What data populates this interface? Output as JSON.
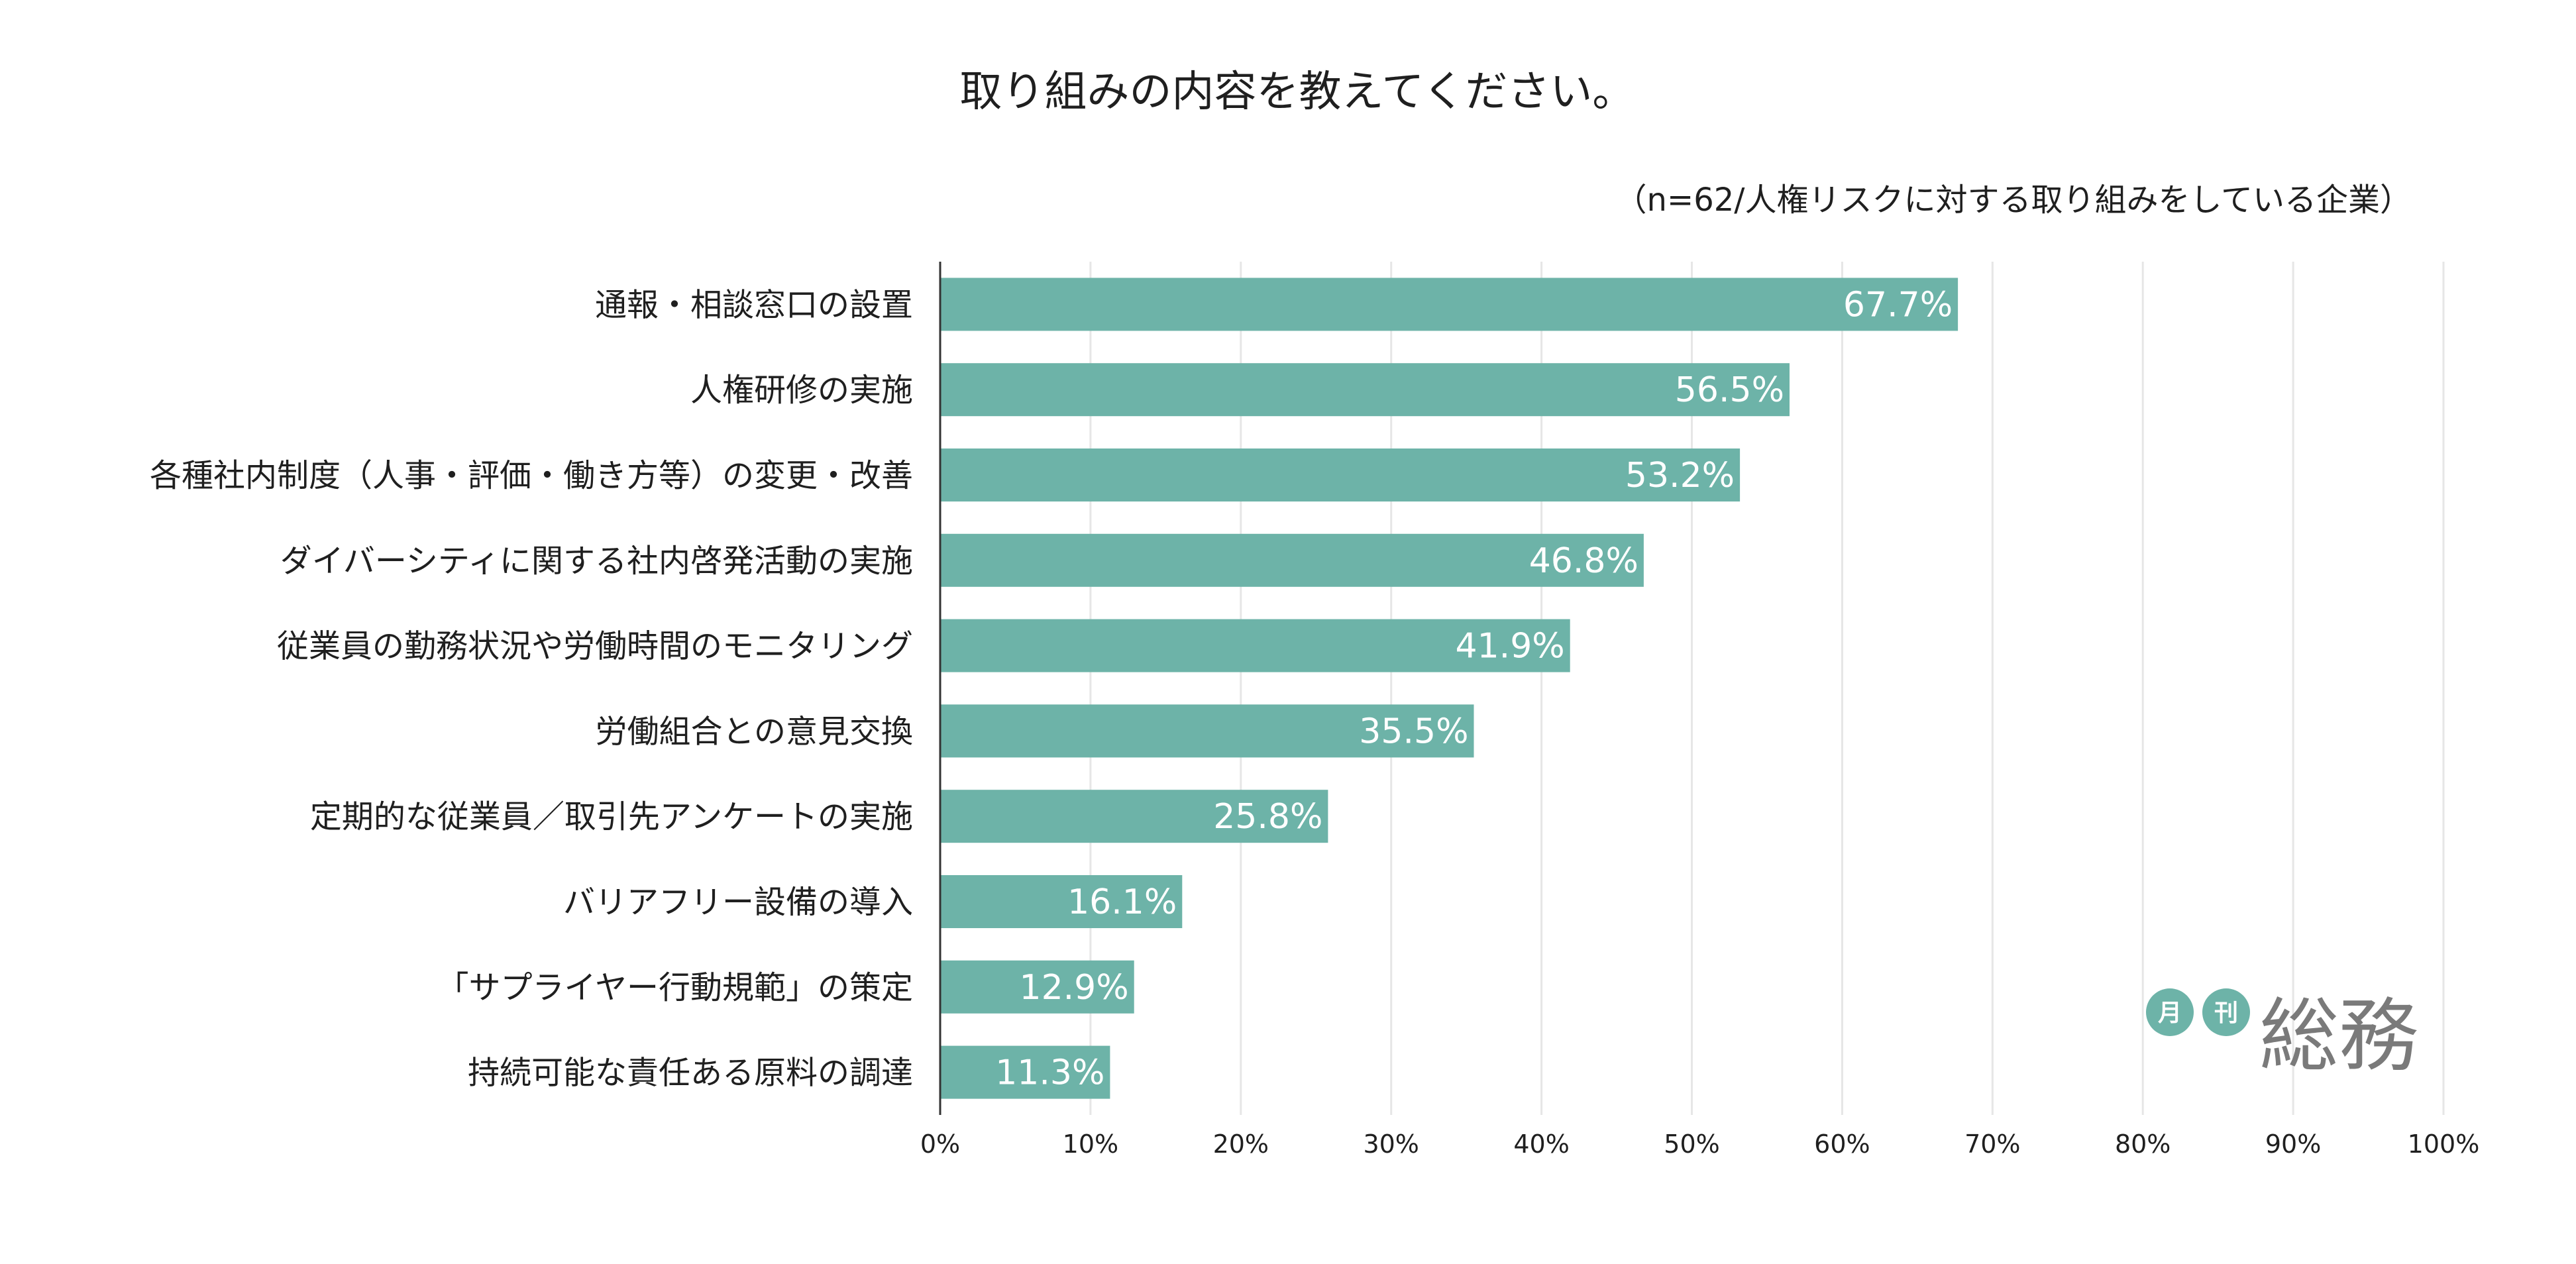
{
  "colors": {
    "bar": "#6db3a8",
    "grid": "#e6e6e6",
    "axis": "#333333",
    "logo_circle": "#6db3a8",
    "logo_text": "#7a7a7a"
  },
  "chart_data": {
    "type": "bar",
    "orientation": "horizontal",
    "title": "取り組みの内容を教えてください。",
    "note": "（n=62/人権リスクに対する取り組みをしている企業）",
    "categories": [
      "通報・相談窓口の設置",
      "人権研修の実施",
      "各種社内制度（人事・評価・働き方等）の変更・改善",
      "ダイバーシティに関する社内啓発活動の実施",
      "従業員の勤務状況や労働時間のモニタリング",
      "労働組合との意見交換",
      "定期的な従業員／取引先アンケートの実施",
      "バリアフリー設備の導入",
      "「サプライヤー行動規範」の策定",
      "持続可能な責任ある原料の調達"
    ],
    "values": [
      67.7,
      56.5,
      53.2,
      46.8,
      41.9,
      35.5,
      25.8,
      16.1,
      12.9,
      11.3
    ],
    "value_labels": [
      "67.7%",
      "56.5%",
      "53.2%",
      "46.8%",
      "41.9%",
      "35.5%",
      "25.8%",
      "16.1%",
      "12.9%",
      "11.3%"
    ],
    "xlim": [
      0,
      100
    ],
    "xticks": [
      "0%",
      "10%",
      "20%",
      "30%",
      "40%",
      "50%",
      "60%",
      "70%",
      "80%",
      "90%",
      "100%"
    ],
    "grid": true,
    "legend": "none"
  },
  "logo": {
    "circle1": "月",
    "circle2": "刊",
    "main": "総務"
  }
}
